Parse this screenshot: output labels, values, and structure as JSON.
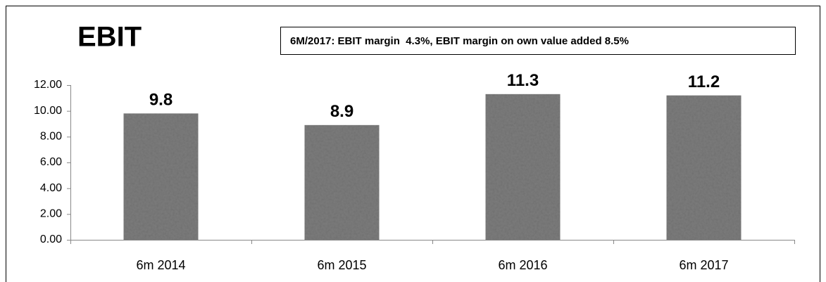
{
  "chart_data": {
    "type": "bar",
    "title": "EBIT",
    "annotation": "6M/2017: EBIT margin  4.3%, EBIT margin on own value added 8.5%",
    "categories": [
      "6m 2014",
      "6m 2015",
      "6m 2016",
      "6m 2017"
    ],
    "values": [
      9.8,
      8.9,
      11.3,
      11.2
    ],
    "color": "#7d7d7d",
    "ylim": [
      0,
      12
    ],
    "yticks": [
      {
        "value": 0,
        "label": "0.00"
      },
      {
        "value": 2,
        "label": "2.00"
      },
      {
        "value": 4,
        "label": "4.00"
      },
      {
        "value": 6,
        "label": "6.00"
      },
      {
        "value": 8,
        "label": "8.00"
      },
      {
        "value": 10,
        "label": "10.00"
      },
      {
        "value": 12,
        "label": "12.00"
      }
    ],
    "grid": false
  }
}
